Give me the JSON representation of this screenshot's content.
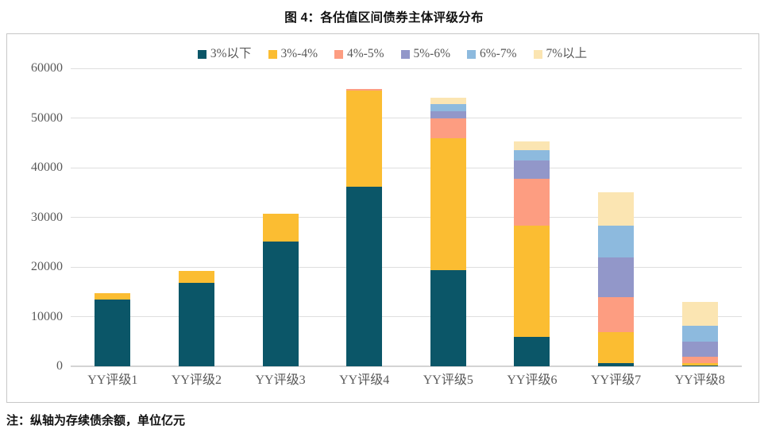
{
  "title": "图 4：各估值区间债券主体评级分布",
  "footnote": "注：纵轴为存续债余额，单位亿元",
  "colors": {
    "grid": "#dedede",
    "axis": "#d4d4d4",
    "tick_label": "#595959",
    "frame_border": "#c7c7c7"
  },
  "chart_data": {
    "type": "bar",
    "stacked": true,
    "title": "图 4：各估值区间债券主体评级分布",
    "note": "注：纵轴为存续债余额，单位亿元",
    "unit": "亿元",
    "categories": [
      "YY评级1",
      "YY评级2",
      "YY评级3",
      "YY评级4",
      "YY评级5",
      "YY评级6",
      "YY评级7",
      "YY评级8"
    ],
    "series": [
      {
        "name": "3%以下",
        "color": "#0b5668",
        "values": [
          13500,
          16800,
          25200,
          36100,
          19300,
          6000,
          700,
          100
        ]
      },
      {
        "name": "3%-4%",
        "color": "#fbbd32",
        "values": [
          1300,
          2400,
          5500,
          19400,
          26600,
          22400,
          6200,
          600
        ]
      },
      {
        "name": "4%-5%",
        "color": "#fd9d81",
        "values": [
          0,
          0,
          0,
          300,
          4100,
          9300,
          7000,
          1300
        ]
      },
      {
        "name": "5%-6%",
        "color": "#9297c9",
        "values": [
          0,
          0,
          0,
          0,
          1400,
          3700,
          8000,
          2900
        ]
      },
      {
        "name": "6%-7%",
        "color": "#8dbade",
        "values": [
          0,
          0,
          0,
          0,
          1400,
          2200,
          6400,
          3200
        ]
      },
      {
        "name": "7%以上",
        "color": "#fbe5b2",
        "values": [
          0,
          0,
          0,
          0,
          1300,
          1700,
          6700,
          4900
        ]
      }
    ],
    "ylim": [
      0,
      60000
    ],
    "yticks": [
      0,
      10000,
      20000,
      30000,
      40000,
      50000,
      60000
    ],
    "legend_position": "top",
    "grid": "horizontal"
  }
}
